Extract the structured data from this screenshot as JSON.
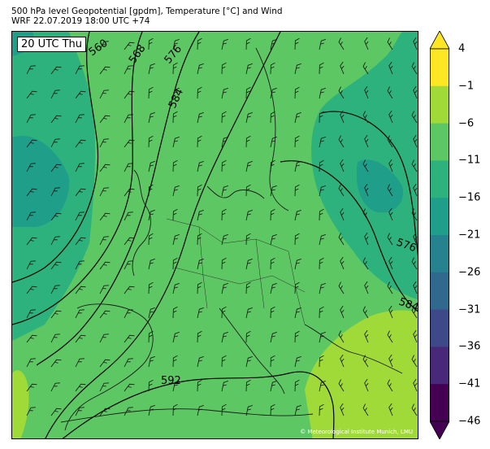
{
  "header": {
    "line1": "500 hPa level Geopotential [gpdm], Temperature [°C] and Wind",
    "line2": "WRF 22.07.2019 18:00 UTC +74"
  },
  "map": {
    "time_label": "20 UTC Thu",
    "copyright": "© Meteorological Institute Munich, LMU",
    "contour_labels": [
      "560",
      "568",
      "576",
      "584",
      "576",
      "584",
      "592"
    ]
  },
  "colorbar": {
    "ticks": [
      "4",
      "−1",
      "−6",
      "−11",
      "−16",
      "−21",
      "−26",
      "−31",
      "−36",
      "−41",
      "−46"
    ],
    "colors": [
      "#fde725",
      "#a0da39",
      "#5dc863",
      "#2db27d",
      "#1f9e89",
      "#26828e",
      "#31688e",
      "#3e4989",
      "#482878",
      "#440154"
    ],
    "over_color": "#fde725",
    "under_color": "#440154"
  }
}
